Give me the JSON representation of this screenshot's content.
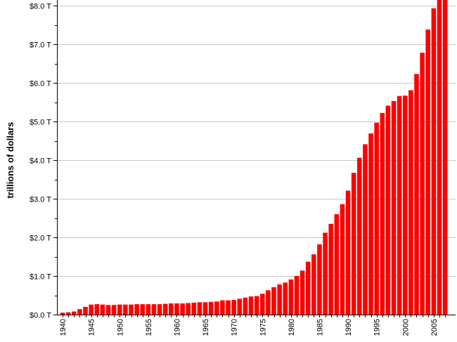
{
  "chart_data": {
    "type": "bar",
    "title": "",
    "xlabel": "",
    "ylabel": "trillions of dollars",
    "ylim": [
      0,
      8.0
    ],
    "bar_color": "#ff0000",
    "grid": true,
    "x": [
      1940,
      1941,
      1942,
      1943,
      1944,
      1945,
      1946,
      1947,
      1948,
      1949,
      1950,
      1951,
      1952,
      1953,
      1954,
      1955,
      1956,
      1957,
      1958,
      1959,
      1960,
      1961,
      1962,
      1963,
      1964,
      1965,
      1966,
      1967,
      1968,
      1969,
      1970,
      1971,
      1972,
      1973,
      1974,
      1975,
      1976,
      1977,
      1978,
      1979,
      1980,
      1981,
      1982,
      1983,
      1984,
      1985,
      1986,
      1987,
      1988,
      1989,
      1990,
      1991,
      1992,
      1993,
      1994,
      1995,
      1996,
      1997,
      1998,
      1999,
      2000,
      2001,
      2002,
      2003,
      2004,
      2005,
      2006,
      2007
    ],
    "values": [
      0.05,
      0.06,
      0.08,
      0.14,
      0.2,
      0.26,
      0.27,
      0.26,
      0.25,
      0.25,
      0.26,
      0.26,
      0.26,
      0.27,
      0.27,
      0.27,
      0.27,
      0.27,
      0.28,
      0.29,
      0.29,
      0.29,
      0.3,
      0.31,
      0.32,
      0.32,
      0.33,
      0.34,
      0.37,
      0.37,
      0.38,
      0.41,
      0.44,
      0.47,
      0.48,
      0.54,
      0.63,
      0.71,
      0.78,
      0.83,
      0.91,
      1.0,
      1.14,
      1.37,
      1.56,
      1.82,
      2.12,
      2.35,
      2.6,
      2.86,
      3.21,
      3.67,
      4.06,
      4.41,
      4.69,
      4.97,
      5.22,
      5.41,
      5.53,
      5.66,
      5.67,
      5.81,
      6.23,
      6.78,
      7.38,
      7.93,
      8.25,
      8.3
    ],
    "y_ticks": [
      {
        "value": 0.0,
        "label": "$0.0 T"
      },
      {
        "value": 1.0,
        "label": "$1.0 T"
      },
      {
        "value": 2.0,
        "label": "$2.0 T"
      },
      {
        "value": 3.0,
        "label": "$3.0 T"
      },
      {
        "value": 4.0,
        "label": "$4.0 T"
      },
      {
        "value": 5.0,
        "label": "$5.0 T"
      },
      {
        "value": 6.0,
        "label": "$6.0 T"
      },
      {
        "value": 7.0,
        "label": "$7.0 T"
      },
      {
        "value": 8.0,
        "label": "$8.0 T"
      }
    ],
    "x_tick_labels": [
      {
        "year": 1940,
        "label": "1940"
      },
      {
        "year": 1945,
        "label": "1945"
      },
      {
        "year": 1950,
        "label": "1950"
      },
      {
        "year": 1955,
        "label": "1955"
      },
      {
        "year": 1960,
        "label": "1960"
      },
      {
        "year": 1965,
        "label": "1965"
      },
      {
        "year": 1970,
        "label": "1970"
      },
      {
        "year": 1975,
        "label": "1975"
      },
      {
        "year": 1980,
        "label": "1980"
      },
      {
        "year": 1985,
        "label": "1985"
      },
      {
        "year": 1990,
        "label": "1990"
      },
      {
        "year": 1995,
        "label": "1995"
      },
      {
        "year": 2000,
        "label": "2000"
      },
      {
        "year": 2005,
        "label": "2005"
      }
    ]
  }
}
